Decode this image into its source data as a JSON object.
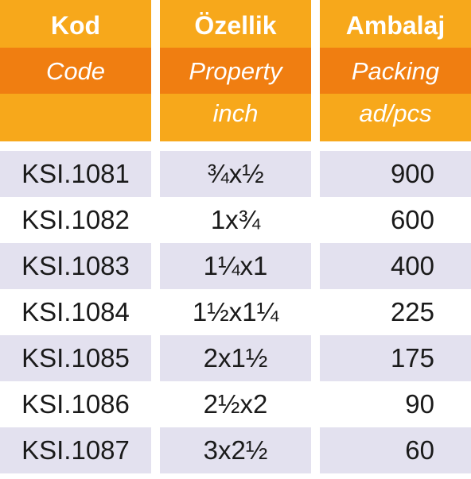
{
  "columns": [
    {
      "title_tr": "Kod",
      "title_en": "Code",
      "unit": ""
    },
    {
      "title_tr": "Özellik",
      "title_en": "Property",
      "unit": "inch"
    },
    {
      "title_tr": "Ambalaj",
      "title_en": "Packing",
      "unit": "ad/pcs"
    }
  ],
  "rows": [
    {
      "code": "KSI.1081",
      "property": "¾x½",
      "packing": "900"
    },
    {
      "code": "KSI.1082",
      "property": "1x¾",
      "packing": "600"
    },
    {
      "code": "KSI.1083",
      "property": "1¼x1",
      "packing": "400"
    },
    {
      "code": "KSI.1084",
      "property": "1½x1¼",
      "packing": "225"
    },
    {
      "code": "KSI.1085",
      "property": "2x1½",
      "packing": "175"
    },
    {
      "code": "KSI.1086",
      "property": "2½x2",
      "packing": "90"
    },
    {
      "code": "KSI.1087",
      "property": "3x2½",
      "packing": "60"
    }
  ],
  "colors": {
    "header_light": "#f7a81b",
    "header_dark": "#f07e11",
    "row_alt": "#e3e1ef"
  }
}
